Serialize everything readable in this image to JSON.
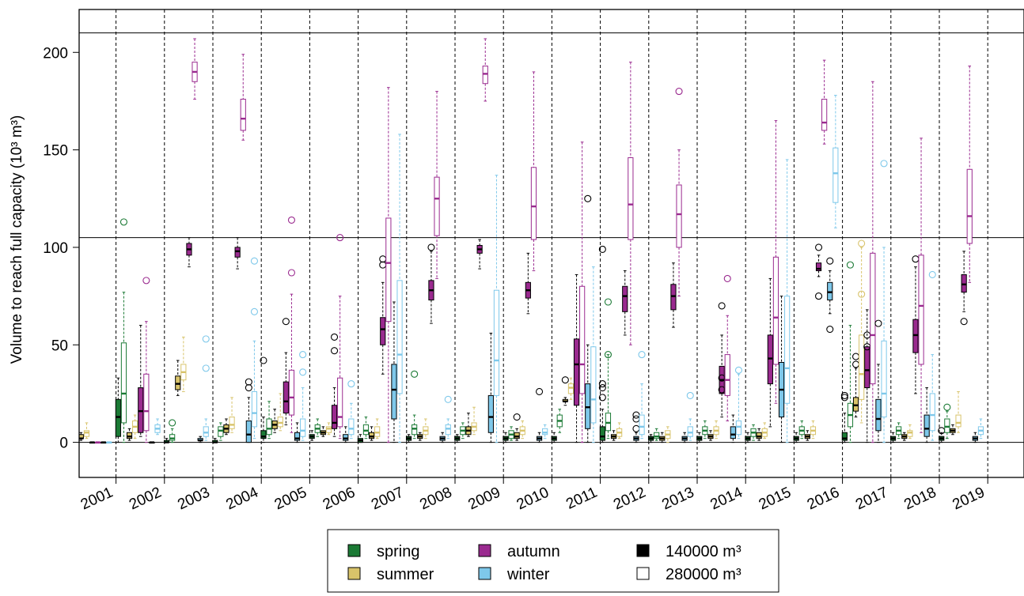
{
  "chart_data": {
    "type": "box",
    "ylabel": "Volume to reach full capacity (10³ m³)",
    "ylim": [
      -18,
      222
    ],
    "yticks": [
      0,
      50,
      100,
      150,
      200
    ],
    "reference_lines": [
      0,
      105,
      210
    ],
    "categories": [
      "2001",
      "2002",
      "2003",
      "2004",
      "2005",
      "2006",
      "2007",
      "2008",
      "2009",
      "2010",
      "2011",
      "2012",
      "2013",
      "2014",
      "2015",
      "2016",
      "2017",
      "2018",
      "2019"
    ],
    "legend": {
      "seasons": [
        {
          "name": "spring",
          "color": "#1b7a35"
        },
        {
          "name": "summer",
          "color": "#d8c36a"
        },
        {
          "name": "autumn",
          "color": "#9a2a8f"
        },
        {
          "name": "winter",
          "color": "#7ec8ea"
        }
      ],
      "capacities": [
        {
          "name": "140000 m³",
          "fill": "filled"
        },
        {
          "name": "280000 m³",
          "fill": "outline"
        }
      ]
    },
    "series_order": [
      [
        "spring",
        "140000 m³"
      ],
      [
        "spring",
        "280000 m³"
      ],
      [
        "summer",
        "140000 m³"
      ],
      [
        "summer",
        "280000 m³"
      ],
      [
        "autumn",
        "140000 m³"
      ],
      [
        "autumn",
        "280000 m³"
      ],
      [
        "winter",
        "140000 m³"
      ],
      [
        "winter",
        "280000 m³"
      ]
    ],
    "boxes": [
      [
        [
          0,
          0,
          0,
          1,
          2,
          []
        ],
        [
          0,
          1,
          2,
          5,
          8,
          [
            7
          ]
        ],
        [
          1,
          2,
          2,
          4,
          5,
          []
        ],
        [
          2,
          3,
          5,
          6,
          10,
          []
        ],
        [
          0,
          0,
          0,
          0,
          0,
          []
        ],
        [
          0,
          0,
          0,
          0,
          0,
          []
        ],
        [
          0,
          0,
          0,
          0,
          0,
          []
        ],
        [
          0,
          0,
          0,
          0,
          0,
          []
        ]
      ],
      [
        [
          0,
          3,
          13,
          22,
          33,
          []
        ],
        [
          0,
          10,
          25,
          51,
          77,
          [
            113
          ]
        ],
        [
          1,
          2,
          3,
          5,
          7,
          []
        ],
        [
          2,
          5,
          8,
          11,
          14,
          []
        ],
        [
          3,
          5,
          16,
          28,
          60,
          []
        ],
        [
          0,
          6,
          16,
          35,
          62,
          [
            83
          ]
        ],
        [
          0,
          0,
          0,
          0,
          0,
          []
        ],
        [
          4,
          5,
          7,
          9,
          12,
          []
        ]
      ],
      [
        [
          0,
          0,
          0,
          1,
          2,
          []
        ],
        [
          0,
          1,
          2,
          4,
          7,
          [
            10
          ]
        ],
        [
          24,
          27,
          30,
          34,
          42,
          []
        ],
        [
          26,
          32,
          36,
          40,
          54,
          []
        ],
        [
          90,
          96,
          99,
          102,
          105,
          []
        ],
        [
          176,
          185,
          190,
          195,
          207,
          []
        ],
        [
          0,
          1,
          1,
          2,
          3,
          []
        ],
        [
          1,
          3,
          5,
          8,
          12,
          [
            53,
            38
          ]
        ]
      ],
      [
        [
          0,
          0,
          0,
          1,
          2,
          []
        ],
        [
          1,
          3,
          6,
          8,
          10,
          []
        ],
        [
          4,
          5,
          7,
          9,
          12,
          []
        ],
        [
          5,
          7,
          9,
          13,
          23,
          []
        ],
        [
          89,
          95,
          98,
          100,
          105,
          []
        ],
        [
          155,
          160,
          166,
          176,
          199,
          []
        ],
        [
          0,
          0,
          4,
          11,
          23,
          [
            28,
            31
          ]
        ],
        [
          2,
          8,
          15,
          26,
          52,
          [
            93,
            67
          ]
        ]
      ],
      [
        [
          0,
          2,
          3,
          6,
          13,
          [
            42
          ]
        ],
        [
          2,
          4,
          7,
          12,
          21,
          []
        ],
        [
          5,
          7,
          9,
          11,
          17,
          []
        ],
        [
          6,
          8,
          10,
          13,
          25,
          []
        ],
        [
          9,
          15,
          21,
          31,
          46,
          [
            62
          ]
        ],
        [
          5,
          14,
          23,
          37,
          76,
          [
            114,
            87
          ]
        ],
        [
          0,
          1,
          2,
          5,
          10,
          []
        ],
        [
          1,
          3,
          6,
          12,
          28,
          [
            45,
            36
          ]
        ]
      ],
      [
        [
          1,
          2,
          3,
          4,
          6,
          []
        ],
        [
          3,
          5,
          7,
          9,
          12,
          []
        ],
        [
          3,
          4,
          5,
          6,
          8,
          []
        ],
        [
          4,
          5,
          7,
          8,
          10,
          []
        ],
        [
          3,
          7,
          10,
          19,
          28,
          [
            47,
            54
          ]
        ],
        [
          2,
          8,
          13,
          33,
          75,
          [
            105
          ]
        ],
        [
          0,
          1,
          2,
          4,
          8,
          []
        ],
        [
          2,
          4,
          7,
          12,
          20,
          [
            30
          ]
        ]
      ],
      [
        [
          0,
          0,
          1,
          2,
          4,
          []
        ],
        [
          2,
          4,
          6,
          9,
          13,
          []
        ],
        [
          1,
          2,
          3,
          5,
          8,
          []
        ],
        [
          2,
          3,
          5,
          8,
          12,
          []
        ],
        [
          35,
          50,
          58,
          64,
          82,
          [
            94,
            91
          ]
        ],
        [
          0,
          62,
          92,
          115,
          182,
          []
        ],
        [
          0,
          12,
          27,
          40,
          72,
          []
        ],
        [
          0,
          25,
          45,
          83,
          158,
          []
        ]
      ],
      [
        [
          0,
          1,
          2,
          3,
          4,
          []
        ],
        [
          2,
          4,
          7,
          9,
          14,
          [
            35
          ]
        ],
        [
          1,
          2,
          3,
          4,
          5,
          []
        ],
        [
          2,
          4,
          6,
          8,
          12,
          []
        ],
        [
          61,
          73,
          78,
          83,
          98,
          [
            100
          ]
        ],
        [
          84,
          106,
          125,
          136,
          180,
          []
        ],
        [
          0,
          1,
          2,
          3,
          5,
          []
        ],
        [
          2,
          4,
          7,
          9,
          12,
          [
            22
          ]
        ]
      ],
      [
        [
          0,
          1,
          2,
          3,
          4,
          []
        ],
        [
          2,
          4,
          6,
          8,
          10,
          []
        ],
        [
          3,
          4,
          6,
          8,
          15,
          []
        ],
        [
          4,
          6,
          8,
          10,
          18,
          []
        ],
        [
          89,
          97,
          99,
          101,
          104,
          []
        ],
        [
          175,
          184,
          189,
          193,
          207,
          []
        ],
        [
          0,
          5,
          13,
          24,
          56,
          []
        ],
        [
          0,
          24,
          42,
          78,
          137,
          []
        ]
      ],
      [
        [
          0,
          1,
          2,
          3,
          5,
          []
        ],
        [
          1,
          2,
          4,
          6,
          8,
          []
        ],
        [
          1,
          2,
          3,
          5,
          7,
          [
            13
          ]
        ],
        [
          2,
          4,
          6,
          8,
          11,
          []
        ],
        [
          66,
          74,
          78,
          82,
          97,
          []
        ],
        [
          88,
          104,
          121,
          141,
          190,
          []
        ],
        [
          0,
          1,
          2,
          3,
          5,
          [
            26
          ]
        ],
        [
          2,
          4,
          5,
          7,
          9,
          []
        ]
      ],
      [
        [
          0,
          1,
          2,
          3,
          5,
          []
        ],
        [
          5,
          8,
          11,
          14,
          17,
          []
        ],
        [
          19,
          21,
          21,
          22,
          23,
          [
            32
          ]
        ],
        [
          22,
          25,
          28,
          30,
          33,
          []
        ],
        [
          0,
          19,
          40,
          53,
          86,
          []
        ],
        [
          0,
          25,
          40,
          80,
          154,
          []
        ],
        [
          0,
          7,
          18,
          30,
          50,
          [
            125
          ]
        ],
        [
          0,
          10,
          22,
          49,
          90,
          []
        ]
      ],
      [
        [
          0,
          1,
          3,
          8,
          17,
          [
            23,
            28,
            30,
            99
          ]
        ],
        [
          2,
          6,
          10,
          15,
          45,
          [
            45,
            72
          ]
        ],
        [
          1,
          2,
          3,
          4,
          6,
          []
        ],
        [
          2,
          3,
          5,
          7,
          10,
          []
        ],
        [
          55,
          67,
          75,
          80,
          88,
          []
        ],
        [
          50,
          104,
          122,
          146,
          195,
          []
        ],
        [
          0,
          1,
          2,
          3,
          5,
          [
            14,
            12,
            7
          ]
        ],
        [
          2,
          4,
          8,
          14,
          30,
          [
            45
          ]
        ]
      ],
      [
        [
          0,
          1,
          2,
          3,
          4,
          []
        ],
        [
          1,
          2,
          3,
          5,
          7,
          []
        ],
        [
          0,
          1,
          2,
          3,
          5,
          []
        ],
        [
          0,
          2,
          4,
          6,
          8,
          []
        ],
        [
          59,
          68,
          75,
          81,
          92,
          []
        ],
        [
          75,
          100,
          117,
          132,
          150,
          [
            180
          ]
        ],
        [
          0,
          1,
          2,
          3,
          5,
          []
        ],
        [
          1,
          3,
          5,
          8,
          12,
          [
            24
          ]
        ]
      ],
      [
        [
          0,
          1,
          2,
          3,
          5,
          []
        ],
        [
          2,
          4,
          6,
          8,
          11,
          []
        ],
        [
          1,
          2,
          3,
          4,
          6,
          []
        ],
        [
          2,
          4,
          6,
          8,
          11,
          []
        ],
        [
          13,
          25,
          32,
          39,
          55,
          [
            70,
            33,
            27
          ]
        ],
        [
          11,
          24,
          32,
          45,
          65,
          [
            84
          ]
        ],
        [
          0,
          2,
          4,
          8,
          14,
          []
        ],
        [
          2,
          4,
          8,
          11,
          35,
          [
            37
          ]
        ]
      ],
      [
        [
          0,
          1,
          2,
          3,
          5,
          []
        ],
        [
          1,
          3,
          5,
          7,
          9,
          []
        ],
        [
          1,
          2,
          3,
          5,
          7,
          []
        ],
        [
          2,
          3,
          5,
          7,
          10,
          []
        ],
        [
          8,
          30,
          43,
          55,
          84,
          []
        ],
        [
          20,
          40,
          64,
          95,
          165,
          []
        ],
        [
          0,
          13,
          27,
          41,
          75,
          []
        ],
        [
          0,
          20,
          38,
          75,
          145,
          []
        ]
      ],
      [
        [
          0,
          1,
          2,
          3,
          5,
          []
        ],
        [
          2,
          4,
          6,
          8,
          11,
          []
        ],
        [
          1,
          2,
          3,
          4,
          6,
          []
        ],
        [
          2,
          4,
          6,
          8,
          11,
          []
        ],
        [
          85,
          88,
          89,
          92,
          96,
          [
            75,
            100
          ]
        ],
        [
          153,
          160,
          164,
          176,
          196,
          []
        ],
        [
          66,
          73,
          77,
          82,
          88,
          [
            58,
            93
          ]
        ],
        [
          110,
          123,
          138,
          151,
          178,
          []
        ]
      ],
      [
        [
          0,
          1,
          2,
          5,
          15,
          [
            24,
            23
          ]
        ],
        [
          0,
          8,
          14,
          20,
          60,
          [
            91
          ]
        ],
        [
          13,
          16,
          19,
          23,
          38,
          [
            40,
            44
          ]
        ],
        [
          10,
          22,
          35,
          55,
          100,
          [
            102,
            76
          ]
        ],
        [
          0,
          28,
          37,
          49,
          68,
          [
            49,
            55
          ]
        ],
        [
          0,
          30,
          55,
          97,
          185,
          []
        ],
        [
          0,
          6,
          12,
          22,
          40,
          [
            61
          ]
        ],
        [
          0,
          13,
          25,
          52,
          100,
          [
            143
          ]
        ]
      ],
      [
        [
          0,
          1,
          2,
          3,
          5,
          []
        ],
        [
          2,
          4,
          6,
          8,
          10,
          []
        ],
        [
          1,
          2,
          3,
          4,
          5,
          []
        ],
        [
          2,
          3,
          5,
          6,
          9,
          []
        ],
        [
          25,
          46,
          55,
          63,
          90,
          [
            94
          ]
        ],
        [
          5,
          40,
          70,
          96,
          156,
          []
        ],
        [
          0,
          3,
          7,
          14,
          28,
          []
        ],
        [
          1,
          6,
          14,
          25,
          45,
          [
            86
          ]
        ]
      ],
      [
        [
          0,
          1,
          2,
          3,
          5,
          [
            6
          ]
        ],
        [
          2,
          5,
          8,
          12,
          16,
          [
            18
          ]
        ],
        [
          4,
          5,
          6,
          7,
          9,
          []
        ],
        [
          5,
          8,
          10,
          14,
          26,
          []
        ],
        [
          67,
          77,
          81,
          86,
          98,
          [
            62
          ]
        ],
        [
          82,
          102,
          116,
          140,
          193,
          []
        ],
        [
          0,
          1,
          2,
          3,
          5,
          []
        ],
        [
          2,
          4,
          6,
          8,
          12,
          []
        ]
      ]
    ]
  }
}
